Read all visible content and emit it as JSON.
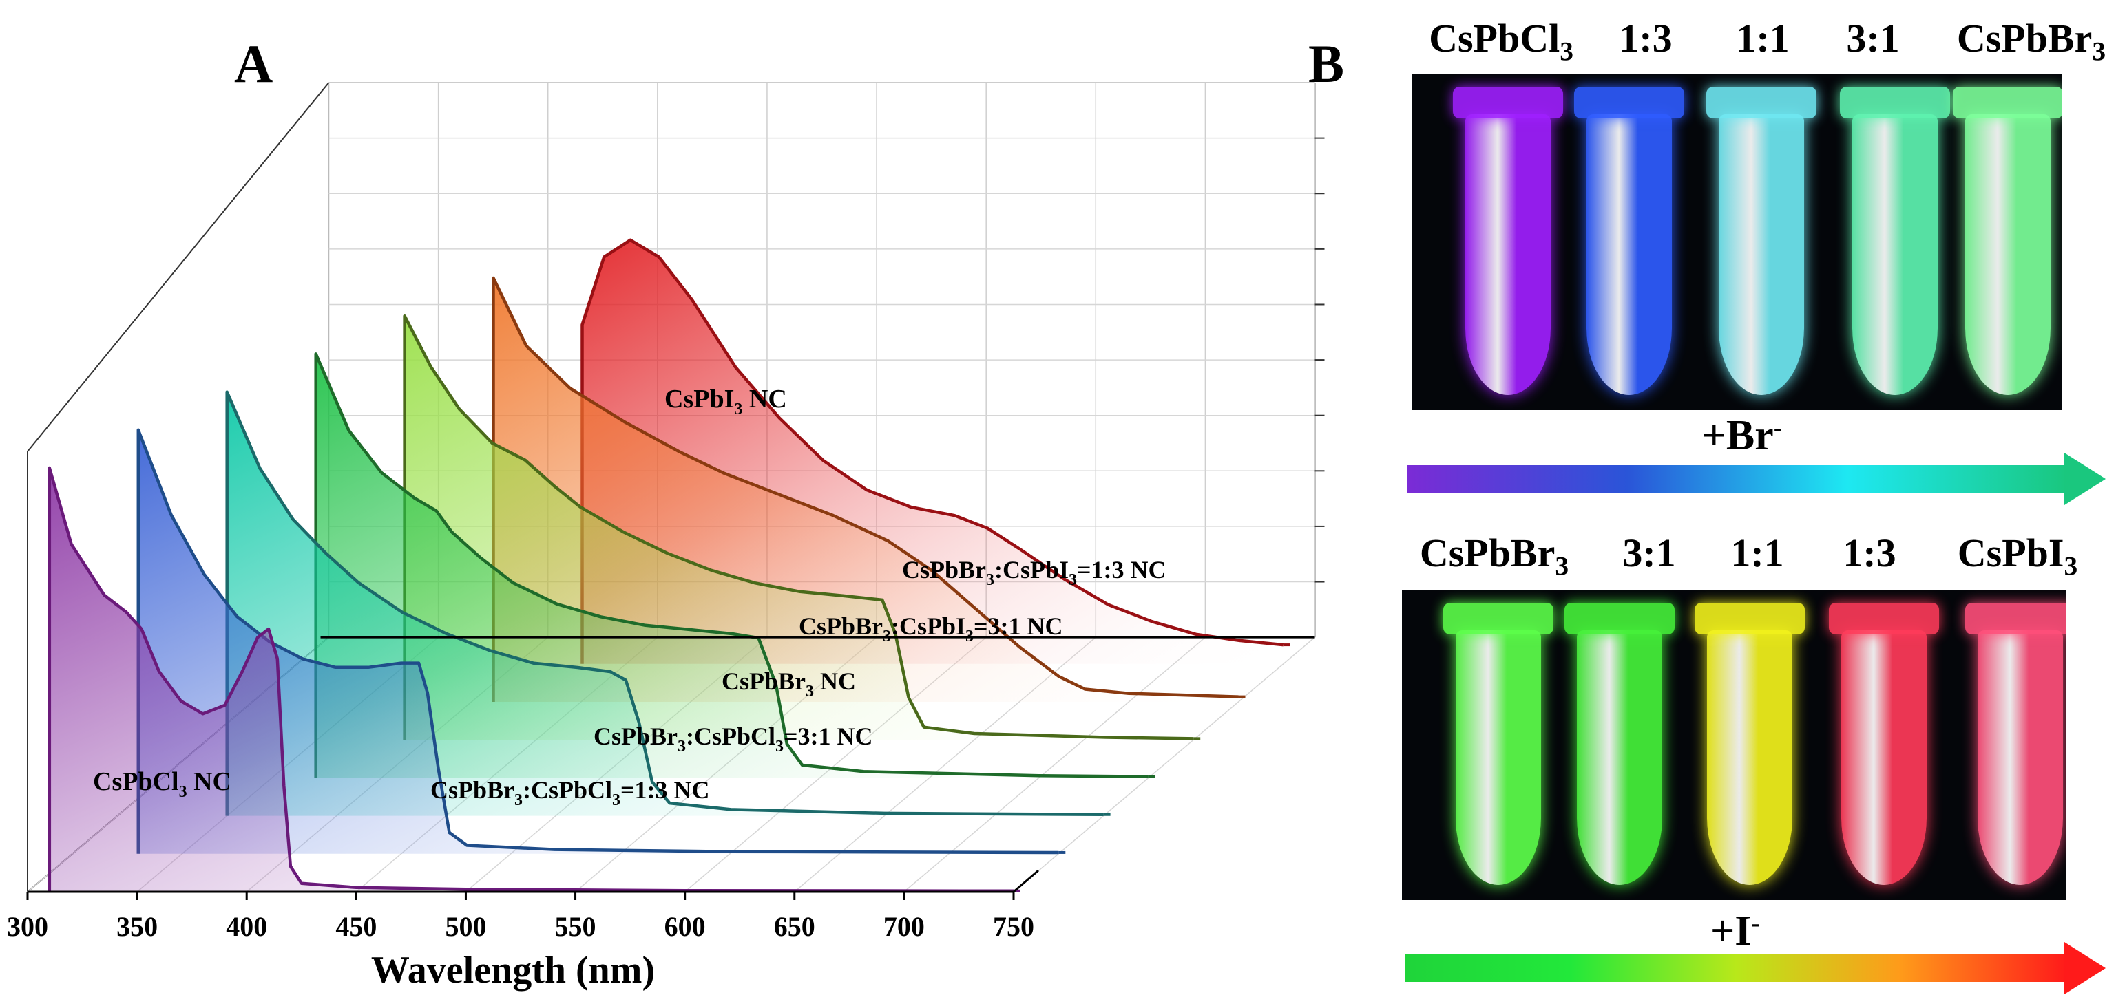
{
  "panels": {
    "a_label": "A",
    "b_label": "B"
  },
  "chart_data": {
    "type": "line",
    "style": "3d-waterfall",
    "xlabel": "Wavelength (nm)",
    "xlim": [
      300,
      750
    ],
    "x_ticks": [
      300,
      350,
      400,
      450,
      500,
      550,
      600,
      650,
      700,
      750
    ],
    "ylabel": "",
    "series": [
      {
        "name": "CsPbCl3 NC",
        "label_main": "CsPbCl",
        "label_sub": "3",
        "label_rest": " NC",
        "color": "#6a1a7a",
        "fill": "#8e3aa6",
        "start_x": 310,
        "points": [
          [
            310,
            100
          ],
          [
            320,
            82
          ],
          [
            335,
            70
          ],
          [
            345,
            66
          ],
          [
            352,
            62
          ],
          [
            360,
            52
          ],
          [
            370,
            45
          ],
          [
            380,
            42
          ],
          [
            390,
            44
          ],
          [
            398,
            52
          ],
          [
            405,
            60
          ],
          [
            410,
            62
          ],
          [
            414,
            55
          ],
          [
            417,
            25
          ],
          [
            420,
            6
          ],
          [
            425,
            2
          ],
          [
            450,
            1
          ],
          [
            500,
            0.6
          ],
          [
            600,
            0.3
          ],
          [
            750,
            0.2
          ]
        ]
      },
      {
        "name": "CsPbBr3:CsPbCl3=1:3 NC",
        "label_main": "CsPbBr",
        "label_sub": "3",
        "label_rest": ":CsPbCl",
        "label_sub2": "3",
        "label_rest2": "=1:3 NC",
        "color": "#1f4d8a",
        "fill": "#3b63d6",
        "start_x": 330,
        "points": [
          [
            330,
            100
          ],
          [
            345,
            80
          ],
          [
            360,
            66
          ],
          [
            375,
            56
          ],
          [
            390,
            50
          ],
          [
            405,
            46
          ],
          [
            420,
            44
          ],
          [
            435,
            44
          ],
          [
            450,
            45
          ],
          [
            458,
            45
          ],
          [
            462,
            38
          ],
          [
            467,
            20
          ],
          [
            472,
            5
          ],
          [
            480,
            2
          ],
          [
            520,
            1
          ],
          [
            600,
            0.5
          ],
          [
            750,
            0.3
          ]
        ]
      },
      {
        "name": "CsPbBr3:CsPbCl3=3:1 NC",
        "label_main": "CsPbBr",
        "label_sub": "3",
        "label_rest": ":CsPbCl",
        "label_sub2": "3",
        "label_rest2": "=3:1 NC",
        "color": "#1b6a6a",
        "fill": "#10c9a8",
        "start_x": 350,
        "points": [
          [
            350,
            100
          ],
          [
            365,
            82
          ],
          [
            380,
            70
          ],
          [
            395,
            62
          ],
          [
            410,
            55
          ],
          [
            430,
            48
          ],
          [
            450,
            43
          ],
          [
            470,
            39
          ],
          [
            490,
            36
          ],
          [
            510,
            35
          ],
          [
            525,
            34
          ],
          [
            532,
            32
          ],
          [
            538,
            22
          ],
          [
            544,
            8
          ],
          [
            552,
            3
          ],
          [
            580,
            1.5
          ],
          [
            650,
            0.6
          ],
          [
            750,
            0.3
          ]
        ]
      },
      {
        "name": "CsPbBr3 NC",
        "label_main": "CsPbBr",
        "label_sub": "3",
        "label_rest": " NC",
        "color": "#1e6b2a",
        "fill": "#22c24a",
        "start_x": 370,
        "points": [
          [
            370,
            100
          ],
          [
            385,
            82
          ],
          [
            400,
            72
          ],
          [
            415,
            66
          ],
          [
            425,
            63
          ],
          [
            432,
            58
          ],
          [
            445,
            52
          ],
          [
            460,
            46
          ],
          [
            480,
            41
          ],
          [
            500,
            38
          ],
          [
            520,
            36
          ],
          [
            540,
            35
          ],
          [
            560,
            34
          ],
          [
            572,
            33
          ],
          [
            580,
            22
          ],
          [
            585,
            8
          ],
          [
            592,
            3
          ],
          [
            620,
            1.5
          ],
          [
            700,
            0.5
          ],
          [
            750,
            0.3
          ]
        ]
      },
      {
        "name": "CsPbBr3:CsPbI3=3:1 NC",
        "label_main": "CsPbBr",
        "label_sub": "3",
        "label_rest": ":CsPbI",
        "label_sub2": "3",
        "label_rest2": "=3:1 NC",
        "color": "#4a6a1a",
        "fill": "#9be04a",
        "start_x": 390,
        "points": [
          [
            390,
            100
          ],
          [
            402,
            88
          ],
          [
            415,
            78
          ],
          [
            430,
            70
          ],
          [
            445,
            66
          ],
          [
            458,
            60
          ],
          [
            470,
            55
          ],
          [
            490,
            49
          ],
          [
            510,
            44
          ],
          [
            530,
            40
          ],
          [
            550,
            37
          ],
          [
            570,
            35
          ],
          [
            590,
            34
          ],
          [
            608,
            33
          ],
          [
            614,
            25
          ],
          [
            620,
            10
          ],
          [
            627,
            3
          ],
          [
            650,
            1.5
          ],
          [
            710,
            0.6
          ],
          [
            750,
            0.3
          ]
        ]
      },
      {
        "name": "CsPbBr3:CsPbI3=1:3 NC",
        "label_main": "CsPbBr",
        "label_sub": "3",
        "label_rest": ":CsPbI",
        "label_sub2": "3",
        "label_rest2": "=1:3 NC",
        "color": "#8a3a10",
        "fill": "#f07a30",
        "start_x": 410,
        "points": [
          [
            410,
            100
          ],
          [
            425,
            84
          ],
          [
            445,
            74
          ],
          [
            470,
            66
          ],
          [
            495,
            59
          ],
          [
            515,
            54
          ],
          [
            540,
            49
          ],
          [
            565,
            44
          ],
          [
            590,
            38
          ],
          [
            610,
            31
          ],
          [
            630,
            22
          ],
          [
            650,
            13
          ],
          [
            668,
            6
          ],
          [
            680,
            3
          ],
          [
            700,
            2
          ],
          [
            750,
            1.2
          ]
        ]
      },
      {
        "name": "CsPbI3 NC",
        "label_main": "CsPbI",
        "label_sub": "3",
        "label_rest": " NC",
        "color": "#9a1014",
        "fill": "#e3262a",
        "start_x": 430,
        "points": [
          [
            430,
            80
          ],
          [
            440,
            96
          ],
          [
            452,
            100
          ],
          [
            465,
            96
          ],
          [
            480,
            86
          ],
          [
            500,
            70
          ],
          [
            520,
            58
          ],
          [
            540,
            48
          ],
          [
            560,
            41
          ],
          [
            580,
            37
          ],
          [
            600,
            35
          ],
          [
            615,
            32
          ],
          [
            630,
            27
          ],
          [
            650,
            20
          ],
          [
            670,
            14
          ],
          [
            690,
            10
          ],
          [
            710,
            7
          ],
          [
            730,
            5.5
          ],
          [
            750,
            4.5
          ]
        ]
      }
    ]
  },
  "photo_top": {
    "labels": [
      {
        "main": "CsPbCl",
        "sub": "3"
      },
      {
        "main": "1:3",
        "sub": ""
      },
      {
        "main": "1:1",
        "sub": ""
      },
      {
        "main": "3:1",
        "sub": ""
      },
      {
        "main": "CsPbBr",
        "sub": "3"
      }
    ],
    "tube_colors": [
      "#a020ff",
      "#2f5cff",
      "#6fe8f2",
      "#5ef3b0",
      "#7cff9a"
    ],
    "gradient": [
      "#7b2bd6",
      "#2a55d8",
      "#1ee8f2",
      "#1ac77e"
    ],
    "ion_main": "+Br",
    "ion_sup": "-"
  },
  "photo_bottom": {
    "labels": [
      {
        "main": "CsPbBr",
        "sub": "3"
      },
      {
        "main": "3:1",
        "sub": ""
      },
      {
        "main": "1:1",
        "sub": ""
      },
      {
        "main": "1:3",
        "sub": ""
      },
      {
        "main": "CsPbI",
        "sub": "3"
      }
    ],
    "tube_colors": [
      "#5cff4a",
      "#46f23a",
      "#f2f21c",
      "#ff3b5a",
      "#ff4f7a"
    ],
    "gradient": [
      "#1fd43a",
      "#22e83a",
      "#b8e81a",
      "#ff9a1a",
      "#ff1a1a"
    ],
    "ion_main": "+I",
    "ion_sup": "-"
  }
}
